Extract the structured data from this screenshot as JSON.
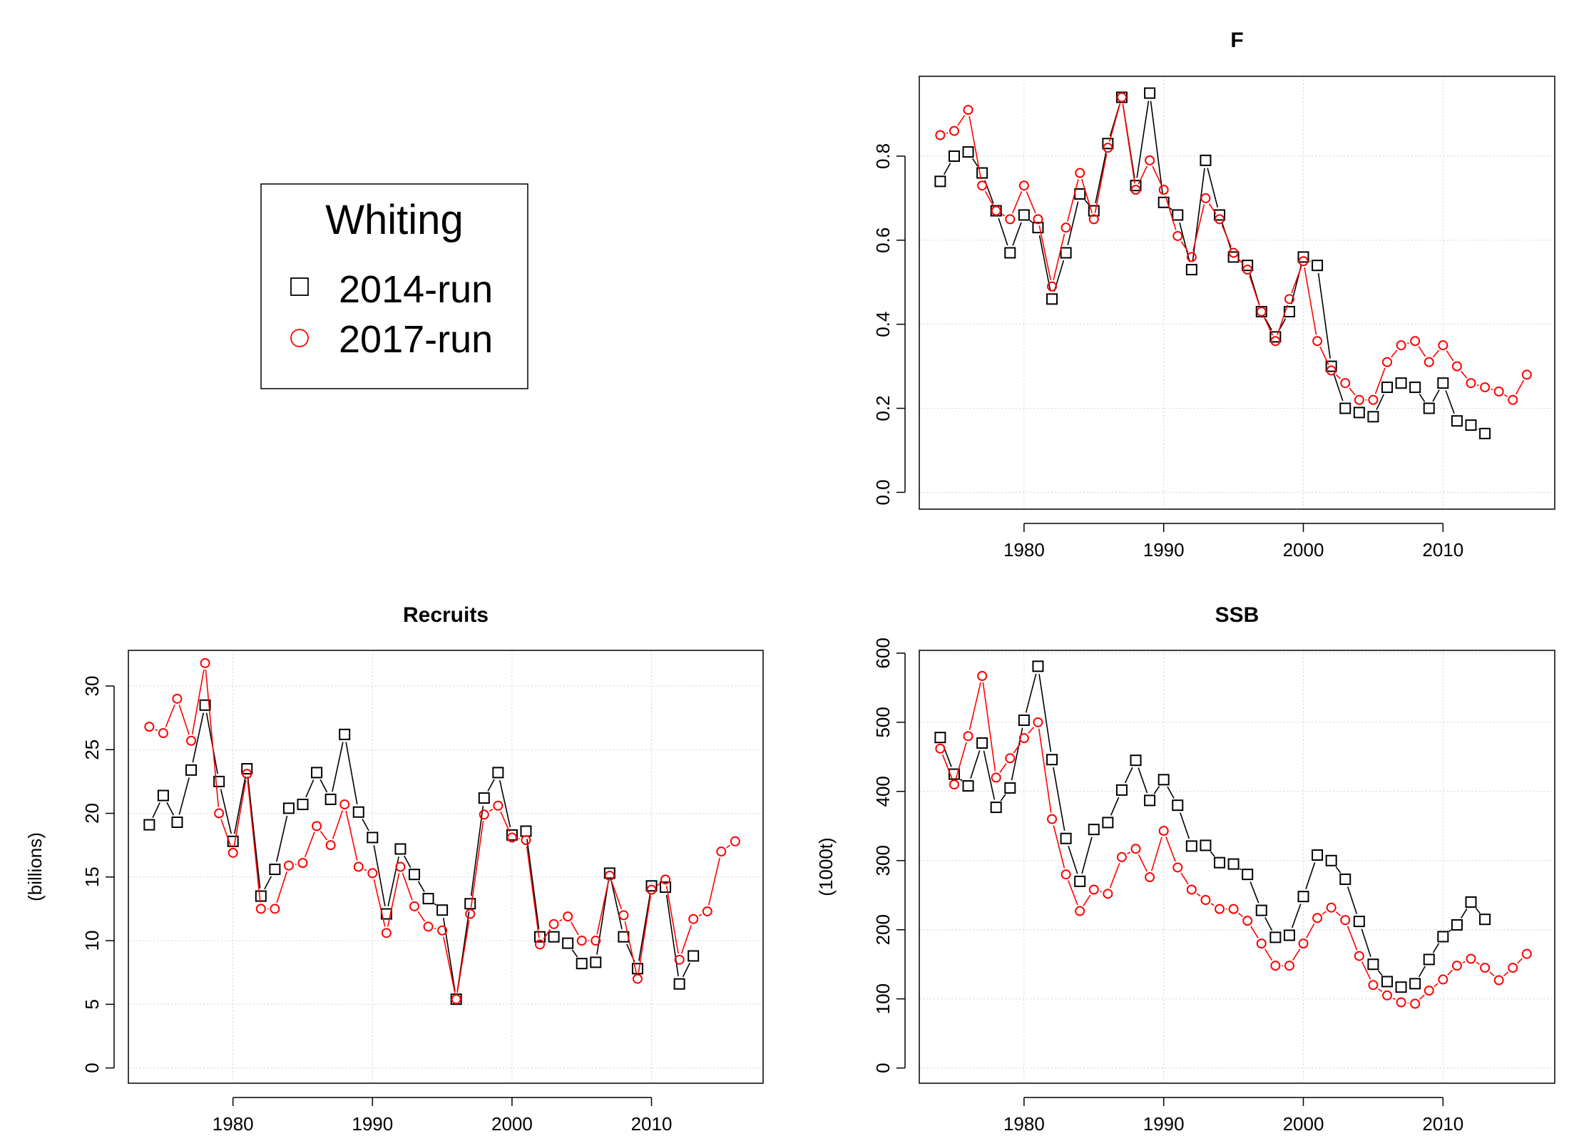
{
  "legend": {
    "title": "Whiting",
    "entries": [
      {
        "label": "2014-run",
        "color": "#000000",
        "marker": "square"
      },
      {
        "label": "2017-run",
        "color": "#ff0000",
        "marker": "circle"
      }
    ]
  },
  "chart_data": [
    {
      "type": "line",
      "title": "F",
      "ylabel": "",
      "xlim": [
        1972.5,
        2018
      ],
      "ylim": [
        -0.04,
        0.99
      ],
      "xticks": [
        1980,
        1990,
        2000,
        2010
      ],
      "yticks": [
        0.0,
        0.2,
        0.4,
        0.6,
        0.8
      ],
      "ytick_labels": [
        "0.0",
        "0.2",
        "0.4",
        "0.6",
        "0.8"
      ],
      "grid": true,
      "series": [
        {
          "name": "2014-run",
          "color": "#000000",
          "marker": "square",
          "x": [
            1974,
            1975,
            1976,
            1977,
            1978,
            1979,
            1980,
            1981,
            1982,
            1983,
            1984,
            1985,
            1986,
            1987,
            1988,
            1989,
            1990,
            1991,
            1992,
            1993,
            1994,
            1995,
            1996,
            1997,
            1998,
            1999,
            2000,
            2001,
            2002,
            2003,
            2004,
            2005,
            2006,
            2007,
            2008,
            2009,
            2010,
            2011,
            2012,
            2013
          ],
          "values": [
            0.74,
            0.8,
            0.81,
            0.76,
            0.67,
            0.57,
            0.66,
            0.63,
            0.46,
            0.57,
            0.71,
            0.67,
            0.83,
            0.94,
            0.73,
            0.95,
            0.69,
            0.66,
            0.53,
            0.79,
            0.66,
            0.56,
            0.54,
            0.43,
            0.37,
            0.43,
            0.56,
            0.54,
            0.3,
            0.2,
            0.19,
            0.18,
            0.25,
            0.26,
            0.25,
            0.2,
            0.26,
            0.17,
            0.16,
            0.14
          ]
        },
        {
          "name": "2017-run",
          "color": "#ff0000",
          "marker": "circle",
          "x": [
            1974,
            1975,
            1976,
            1977,
            1978,
            1979,
            1980,
            1981,
            1982,
            1983,
            1984,
            1985,
            1986,
            1987,
            1988,
            1989,
            1990,
            1991,
            1992,
            1993,
            1994,
            1995,
            1996,
            1997,
            1998,
            1999,
            2000,
            2001,
            2002,
            2003,
            2004,
            2005,
            2006,
            2007,
            2008,
            2009,
            2010,
            2011,
            2012,
            2013,
            2014,
            2015,
            2016
          ],
          "values": [
            0.85,
            0.86,
            0.91,
            0.73,
            0.67,
            0.65,
            0.73,
            0.65,
            0.49,
            0.63,
            0.76,
            0.65,
            0.82,
            0.94,
            0.72,
            0.79,
            0.72,
            0.61,
            0.56,
            0.7,
            0.65,
            0.57,
            0.53,
            0.43,
            0.36,
            0.46,
            0.55,
            0.36,
            0.29,
            0.26,
            0.22,
            0.22,
            0.31,
            0.35,
            0.36,
            0.31,
            0.35,
            0.3,
            0.26,
            0.25,
            0.24,
            0.22,
            0.28
          ]
        }
      ]
    },
    {
      "type": "line",
      "title": "Recruits",
      "ylabel": "(billions)",
      "xlim": [
        1972.5,
        2018
      ],
      "ylim": [
        -1.2,
        32.8
      ],
      "xticks": [
        1980,
        1990,
        2000,
        2010
      ],
      "yticks": [
        0,
        5,
        10,
        15,
        20,
        25,
        30
      ],
      "ytick_labels": [
        "0",
        "5",
        "10",
        "15",
        "20",
        "25",
        "30"
      ],
      "grid": true,
      "series": [
        {
          "name": "2014-run",
          "color": "#000000",
          "marker": "square",
          "x": [
            1974,
            1975,
            1976,
            1977,
            1978,
            1979,
            1980,
            1981,
            1982,
            1983,
            1984,
            1985,
            1986,
            1987,
            1988,
            1989,
            1990,
            1991,
            1992,
            1993,
            1994,
            1995,
            1996,
            1997,
            1998,
            1999,
            2000,
            2001,
            2002,
            2003,
            2004,
            2005,
            2006,
            2007,
            2008,
            2009,
            2010,
            2011,
            2012,
            2013
          ],
          "values": [
            19.1,
            21.4,
            19.3,
            23.4,
            28.5,
            22.5,
            17.8,
            23.5,
            13.5,
            15.6,
            20.4,
            20.7,
            23.2,
            21.1,
            26.2,
            20.1,
            18.1,
            12.1,
            17.2,
            15.2,
            13.3,
            12.4,
            5.4,
            12.9,
            21.2,
            23.2,
            18.3,
            18.6,
            10.3,
            10.3,
            9.8,
            8.2,
            8.3,
            15.3,
            10.3,
            7.8,
            14.3,
            14.2,
            6.6,
            8.8
          ]
        },
        {
          "name": "2017-run",
          "color": "#ff0000",
          "marker": "circle",
          "x": [
            1974,
            1975,
            1976,
            1977,
            1978,
            1979,
            1980,
            1981,
            1982,
            1983,
            1984,
            1985,
            1986,
            1987,
            1988,
            1989,
            1990,
            1991,
            1992,
            1993,
            1994,
            1995,
            1996,
            1997,
            1998,
            1999,
            2000,
            2001,
            2002,
            2003,
            2004,
            2005,
            2006,
            2007,
            2008,
            2009,
            2010,
            2011,
            2012,
            2013,
            2014,
            2015,
            2016
          ],
          "values": [
            26.8,
            26.3,
            29.0,
            25.7,
            31.8,
            20.0,
            16.9,
            23.1,
            12.5,
            12.5,
            15.9,
            16.1,
            19.0,
            17.5,
            20.7,
            15.8,
            15.3,
            10.6,
            15.8,
            12.7,
            11.1,
            10.8,
            5.4,
            12.1,
            19.9,
            20.6,
            18.1,
            17.9,
            9.7,
            11.3,
            11.9,
            10.0,
            10.0,
            15.1,
            12.0,
            7.0,
            14.0,
            14.8,
            8.5,
            11.7,
            12.3,
            17.0,
            17.8
          ]
        }
      ]
    },
    {
      "type": "line",
      "title": "SSB",
      "ylabel": "(1000t)",
      "xlim": [
        1972.5,
        2018
      ],
      "ylim": [
        -22,
        604
      ],
      "xticks": [
        1980,
        1990,
        2000,
        2010
      ],
      "yticks": [
        0,
        100,
        200,
        300,
        400,
        500,
        600
      ],
      "ytick_labels": [
        "0",
        "100",
        "200",
        "300",
        "400",
        "500",
        "600"
      ],
      "grid": true,
      "series": [
        {
          "name": "2014-run",
          "color": "#000000",
          "marker": "square",
          "x": [
            1974,
            1975,
            1976,
            1977,
            1978,
            1979,
            1980,
            1981,
            1982,
            1983,
            1984,
            1985,
            1986,
            1987,
            1988,
            1989,
            1990,
            1991,
            1992,
            1993,
            1994,
            1995,
            1996,
            1997,
            1998,
            1999,
            2000,
            2001,
            2002,
            2003,
            2004,
            2005,
            2006,
            2007,
            2008,
            2009,
            2010,
            2011,
            2012,
            2013
          ],
          "values": [
            478,
            425,
            408,
            470,
            377,
            405,
            503,
            581,
            446,
            332,
            270,
            345,
            355,
            402,
            445,
            387,
            417,
            380,
            321,
            322,
            297,
            295,
            280,
            228,
            189,
            192,
            248,
            308,
            300,
            273,
            212,
            150,
            125,
            117,
            122,
            157,
            190,
            207,
            240,
            215
          ]
        },
        {
          "name": "2017-run",
          "color": "#ff0000",
          "marker": "circle",
          "x": [
            1974,
            1975,
            1976,
            1977,
            1978,
            1979,
            1980,
            1981,
            1982,
            1983,
            1984,
            1985,
            1986,
            1987,
            1988,
            1989,
            1990,
            1991,
            1992,
            1993,
            1994,
            1995,
            1996,
            1997,
            1998,
            1999,
            2000,
            2001,
            2002,
            2003,
            2004,
            2005,
            2006,
            2007,
            2008,
            2009,
            2010,
            2011,
            2012,
            2013,
            2014,
            2015,
            2016
          ],
          "values": [
            462,
            410,
            480,
            567,
            420,
            448,
            477,
            500,
            360,
            280,
            227,
            258,
            252,
            305,
            317,
            276,
            343,
            290,
            258,
            243,
            230,
            230,
            213,
            180,
            148,
            148,
            180,
            217,
            232,
            214,
            162,
            120,
            105,
            95,
            93,
            112,
            128,
            148,
            158,
            145,
            127,
            145,
            165
          ]
        }
      ]
    }
  ]
}
